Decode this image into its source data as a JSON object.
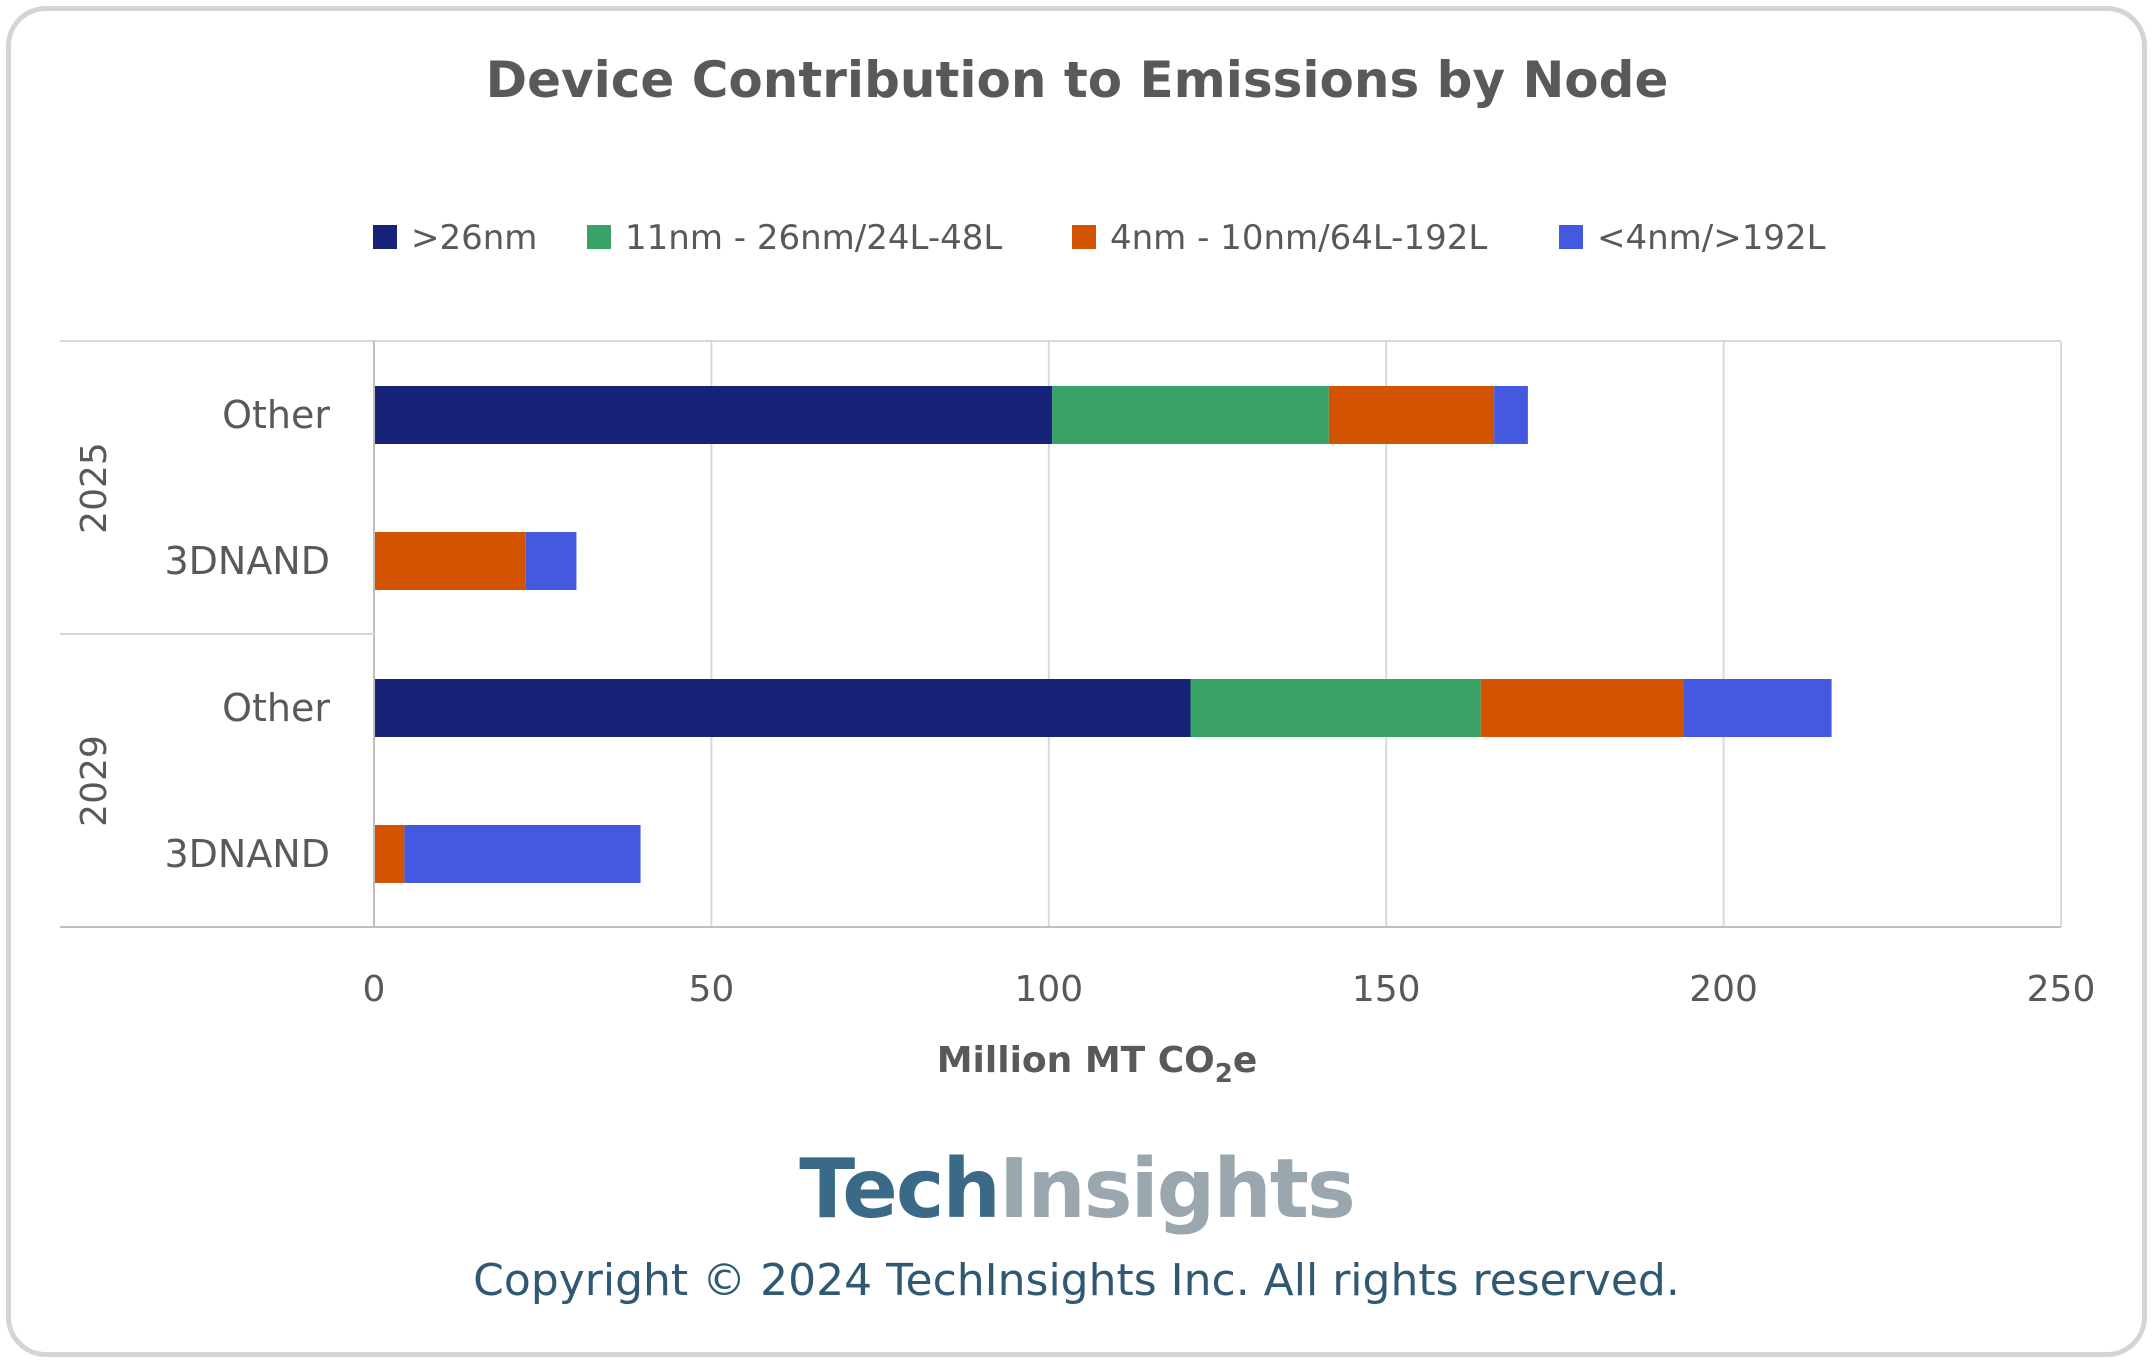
{
  "chart_data": {
    "type": "bar",
    "orientation": "horizontal",
    "stacked": true,
    "title": "Device Contribution to Emissions by Node",
    "xlabel": "Million MT CO",
    "xlabel_sub": "2",
    "xlabel_suffix": "e",
    "ylabel": "",
    "xlim": [
      0,
      250
    ],
    "x_ticks": [
      "0",
      "50",
      "100",
      "150",
      "200",
      "250"
    ],
    "grid": true,
    "legend_position": "top",
    "groups": [
      {
        "label": "2025",
        "categories": [
          "Other",
          "3DNAND"
        ]
      },
      {
        "label": "2029",
        "categories": [
          "Other",
          "3DNAND"
        ]
      }
    ],
    "categories": [
      "2025 Other",
      "2025 3DNAND",
      "2029 Other",
      "2029 3DNAND"
    ],
    "series": [
      {
        "name": ">26nm",
        "color": "#172378",
        "values": [
          100.5,
          0,
          121,
          0
        ]
      },
      {
        "name": "11nm - 26nm/24L-48L",
        "color": "#38a267",
        "values": [
          41,
          0,
          43,
          0
        ]
      },
      {
        "name": "4nm - 10nm/64L-192L",
        "color": "#d35400",
        "values": [
          24.5,
          22.5,
          30,
          4.5
        ]
      },
      {
        "name": "<4nm/>192L",
        "color": "#4459df",
        "values": [
          5,
          7.5,
          22,
          35
        ]
      }
    ]
  },
  "branding": {
    "logo_part1": "Tech",
    "logo_part2": "Insights",
    "copyright": "Copyright © 2024 TechInsights Inc.  All rights reserved."
  }
}
